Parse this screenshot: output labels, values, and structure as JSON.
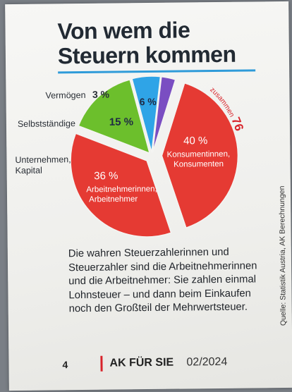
{
  "title_line1": "Von wem die",
  "title_line2": "Steuern kommen",
  "colors": {
    "accent_blue": "#2f9bd9",
    "accent_red": "#d8232a",
    "slice_red": "#e53a33",
    "slice_green": "#6cbf2c",
    "slice_blue": "#2fa4e7",
    "slice_purple": "#7a4ec2",
    "label_white": "#ffffff",
    "label_dark": "#1f2a44"
  },
  "chart_data": {
    "type": "pie",
    "slices": [
      {
        "label": "Konsumentinnen, Konsumenten",
        "value": 40,
        "value_label": "40 %",
        "label_line1": "Konsumentinnen,",
        "label_line2": "Konsumenten",
        "color": "#e53a33"
      },
      {
        "label": "Arbeitnehmerinnen, Arbeitnehmer",
        "value": 36,
        "value_label": "36 %",
        "label_line1": "Arbeitnehmerinnen,",
        "label_line2": "Arbeitnehmer",
        "color": "#e53a33"
      },
      {
        "label": "Unternehmen, Kapital",
        "value": 15,
        "value_label": "15 %",
        "label_line1": "Unternehmen,",
        "label_line2": "Kapital",
        "color": "#6cbf2c"
      },
      {
        "label": "Selbstständige",
        "value": 6,
        "value_label": "6 %",
        "color": "#2fa4e7"
      },
      {
        "label": "Vermögen",
        "value": 3,
        "value_label": "3 %",
        "color": "#7a4ec2"
      }
    ],
    "annotation": {
      "text": "zusammen",
      "value_label": "76 %"
    }
  },
  "source": "Quelle: Statistik Austria, AK Berechnungen",
  "caption": "Die wahren Steuerzahlerinnen und Steuerzahler sind die Arbeitnehmerinnen und die Arbeitnehmer: Sie zahlen einmal Lohnsteuer – und dann beim Einkaufen noch den Großteil der Mehrwertsteuer.",
  "footer": {
    "page_number": "4",
    "brand": "AK FÜR SIE",
    "issue": "02/2024"
  }
}
